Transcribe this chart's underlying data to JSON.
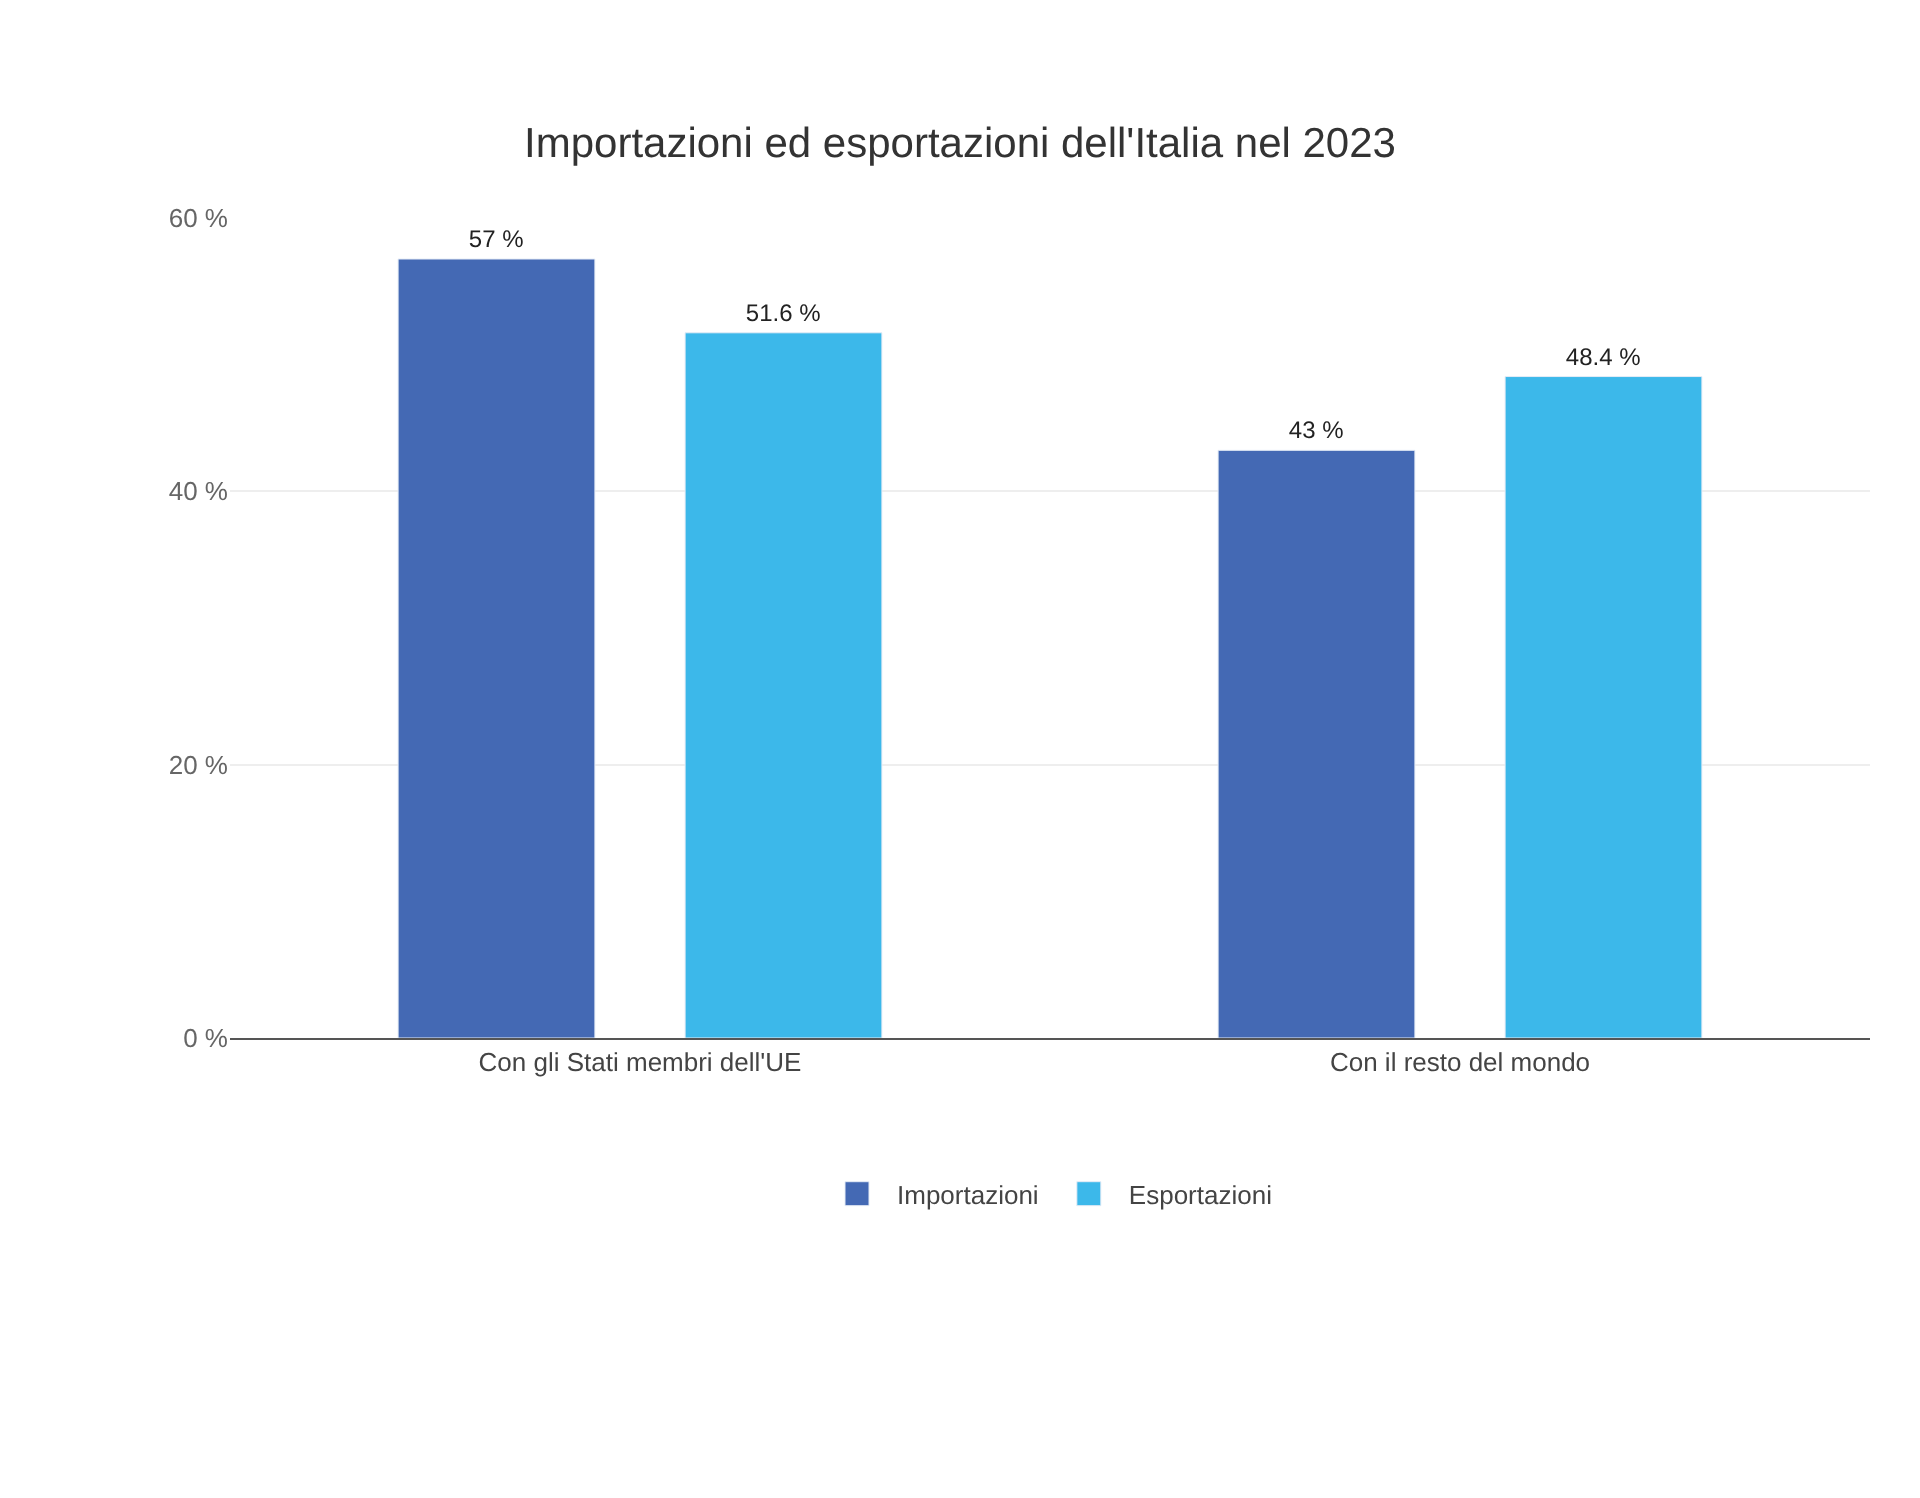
{
  "chart_data": {
    "type": "bar",
    "title": "Importazioni ed esportazioni dell'Italia nel 2023",
    "categories": [
      "Con gli Stati membri dell'UE",
      "Con il resto del mondo"
    ],
    "series": [
      {
        "name": "Importazioni",
        "color": "#4469b4",
        "values": [
          57,
          43
        ],
        "value_labels": [
          "57 %",
          "43 %"
        ]
      },
      {
        "name": "Esportazioni",
        "color": "#3cb8ea",
        "values": [
          51.6,
          48.4
        ],
        "value_labels": [
          "51.6 %",
          "48.4 %"
        ]
      }
    ],
    "ylim": [
      0,
      60
    ],
    "yticks": [
      {
        "value": 0,
        "label": "0 %"
      },
      {
        "value": 20,
        "label": "20 %"
      },
      {
        "value": 40,
        "label": "40 %"
      },
      {
        "value": 60,
        "label": "60 %"
      }
    ],
    "grid": "y",
    "legend": "bottom"
  }
}
